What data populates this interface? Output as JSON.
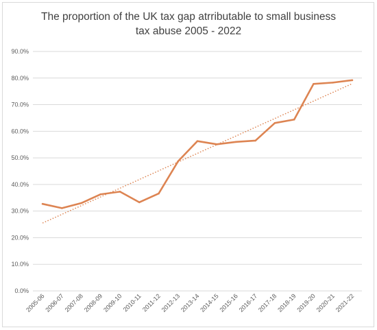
{
  "chart_data": {
    "type": "line",
    "title_line1": "The proportion of the UK tax gap atrributable to small business",
    "title_line2": "tax abuse 2005 - 2022",
    "categories": [
      "2005-06",
      "2006-07",
      "2007-08",
      "2008-09",
      "2009-10",
      "2010-11",
      "2011-12",
      "2012-13",
      "2013-14",
      "2014-15",
      "2015-16",
      "2016-17",
      "2017-18",
      "2018-19",
      "2019-20",
      "2020-21",
      "2021-22"
    ],
    "series": [
      {
        "values": [
          32.7,
          31.1,
          33.0,
          36.3,
          37.3,
          33.3,
          36.6,
          48.7,
          56.3,
          55.1,
          56.0,
          56.5,
          63.1,
          64.4,
          77.8,
          78.3,
          79.2
        ]
      }
    ],
    "trendline": {
      "type": "linear",
      "start": 25.5,
      "end": 77.9
    },
    "y_ticks": [
      "0.0%",
      "10.0%",
      "20.0%",
      "30.0%",
      "40.0%",
      "50.0%",
      "60.0%",
      "70.0%",
      "80.0%",
      "90.0%"
    ],
    "ylim": [
      0,
      90
    ],
    "grid": true,
    "colors": {
      "line": "#DD8452",
      "trend": "#DD8452",
      "grid": "#d9d9d9",
      "text": "#595959"
    }
  }
}
